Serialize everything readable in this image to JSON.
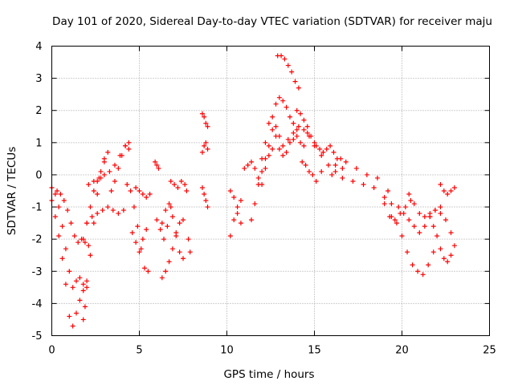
{
  "chart_data": {
    "type": "scatter",
    "title": "Day 101 of 2020, Sidereal Day-to-day VTEC variation (SDTVAR) for receiver maju",
    "xlabel": "GPS time / hours",
    "ylabel": "SDTVAR / TECUs",
    "xlim": [
      0,
      25
    ],
    "ylim": [
      -5,
      4
    ],
    "xticks": [
      0,
      5,
      10,
      15,
      20,
      25
    ],
    "yticks": [
      -5,
      -4,
      -3,
      -2,
      -1,
      0,
      1,
      2,
      3,
      4
    ],
    "grid": true,
    "marker": "plus",
    "series": [
      {
        "name": "SDTVAR",
        "color": "#ff0000",
        "tracks": [
          {
            "x": [
              0.0,
              0.2,
              0.4,
              0.6,
              0.8,
              1.0,
              1.2,
              1.4,
              1.6,
              1.8
            ],
            "y": [
              -0.4,
              -0.6,
              -1.0,
              -1.6,
              -2.3,
              -3.0,
              -3.5,
              -3.3,
              -3.2,
              -3.4
            ]
          },
          {
            "x": [
              0.0,
              0.2,
              0.4,
              0.6,
              0.8,
              1.0,
              1.2,
              1.4,
              1.6,
              1.8,
              2.0
            ],
            "y": [
              -0.8,
              -1.3,
              -1.9,
              -2.6,
              -3.4,
              -4.4,
              -4.7,
              -4.3,
              -3.9,
              -3.6,
              -3.3
            ]
          },
          {
            "x": [
              0.3,
              0.5,
              0.7,
              0.9,
              1.1,
              1.3,
              1.5,
              1.7,
              1.9,
              2.1
            ],
            "y": [
              -0.5,
              -0.6,
              -0.8,
              -1.1,
              -1.5,
              -1.9,
              -2.1,
              -2.0,
              -2.1,
              -2.2
            ]
          },
          {
            "x": [
              1.8,
              1.9,
              2.0,
              2.2,
              2.4,
              2.6,
              2.8,
              3.0,
              3.2
            ],
            "y": [
              -4.5,
              -4.1,
              -3.5,
              -2.5,
              -1.5,
              -0.6,
              -0.1,
              0.4,
              0.7
            ]
          },
          {
            "x": [
              1.8,
              2.0,
              2.2,
              2.4,
              2.6,
              2.8,
              3.0
            ],
            "y": [
              -2.0,
              -1.5,
              -1.0,
              -0.5,
              -0.2,
              0.1,
              0.5
            ]
          },
          {
            "x": [
              2.0,
              2.3,
              2.6,
              2.9,
              3.2,
              3.5,
              3.8,
              4.1
            ],
            "y": [
              -1.5,
              -1.3,
              -1.2,
              -1.1,
              -1.0,
              -1.1,
              -1.2,
              -1.1
            ]
          },
          {
            "x": [
              2.1,
              2.4,
              2.7,
              3.0,
              3.3,
              3.6,
              3.9,
              4.2,
              4.4
            ],
            "y": [
              -0.3,
              -0.2,
              -0.1,
              0.0,
              0.1,
              0.3,
              0.6,
              0.9,
              1.0
            ]
          },
          {
            "x": [
              3.4,
              3.6,
              3.8,
              4.0,
              4.2,
              4.4
            ],
            "y": [
              -0.5,
              -0.2,
              0.2,
              0.6,
              0.9,
              0.8
            ]
          },
          {
            "x": [
              4.3,
              4.5,
              4.7,
              4.9,
              5.1,
              5.3,
              5.5
            ],
            "y": [
              -0.3,
              -0.5,
              -1.0,
              -1.6,
              -2.3,
              -2.9,
              -3.0
            ]
          },
          {
            "x": [
              4.6,
              4.8,
              5.0,
              5.2,
              5.4
            ],
            "y": [
              -1.8,
              -2.1,
              -2.4,
              -2.0,
              -1.7
            ]
          },
          {
            "x": [
              4.8,
              5.0,
              5.2,
              5.4,
              5.6
            ],
            "y": [
              -0.4,
              -0.5,
              -0.6,
              -0.7,
              -0.6
            ]
          },
          {
            "x": [
              5.9,
              6.0,
              6.1
            ],
            "y": [
              0.4,
              0.3,
              0.2
            ]
          },
          {
            "x": [
              6.3,
              6.5,
              6.7,
              6.9,
              7.1,
              7.3,
              7.5
            ],
            "y": [
              -3.2,
              -3.0,
              -2.7,
              -2.3,
              -1.8,
              -1.5,
              -1.4
            ]
          },
          {
            "x": [
              6.3,
              6.5,
              6.7,
              6.9,
              7.1,
              7.3,
              7.5
            ],
            "y": [
              -1.5,
              -1.1,
              -0.9,
              -1.3,
              -1.9,
              -2.4,
              -2.6
            ]
          },
          {
            "x": [
              6.0,
              6.2,
              6.4,
              6.6,
              6.8
            ],
            "y": [
              -1.4,
              -1.7,
              -2.0,
              -1.6,
              -1.0
            ]
          },
          {
            "x": [
              6.8,
              7.0,
              7.2,
              7.4,
              7.6
            ],
            "y": [
              -0.2,
              -0.3,
              -0.4,
              -0.2,
              -0.3
            ]
          },
          {
            "x": [
              7.7,
              7.8,
              7.9
            ],
            "y": [
              -0.5,
              -2.0,
              -2.4
            ]
          },
          {
            "x": [
              8.6,
              8.7,
              8.8,
              8.9
            ],
            "y": [
              1.9,
              1.8,
              1.6,
              1.5
            ]
          },
          {
            "x": [
              8.6,
              8.7,
              8.8,
              8.9
            ],
            "y": [
              0.7,
              0.9,
              1.0,
              0.8
            ]
          },
          {
            "x": [
              8.6,
              8.7,
              8.8,
              8.9
            ],
            "y": [
              -0.4,
              -0.6,
              -0.8,
              -1.0
            ]
          },
          {
            "x": [
              10.2,
              10.4,
              10.6,
              10.8
            ],
            "y": [
              -1.9,
              -1.4,
              -1.0,
              -0.8
            ]
          },
          {
            "x": [
              10.2,
              10.4,
              10.6,
              10.8
            ],
            "y": [
              -0.5,
              -0.7,
              -1.2,
              -1.5
            ]
          },
          {
            "x": [
              11.0,
              11.2
            ],
            "y": [
              0.2,
              0.3
            ]
          },
          {
            "x": [
              11.4,
              11.6,
              11.8,
              12.0,
              12.2,
              12.4,
              12.6
            ],
            "y": [
              -1.4,
              -0.9,
              -0.3,
              0.1,
              0.5,
              0.9,
              1.4
            ]
          },
          {
            "x": [
              11.4,
              11.6,
              11.8,
              12.0,
              12.2,
              12.4,
              12.6
            ],
            "y": [
              0.4,
              0.2,
              -0.1,
              -0.3,
              0.2,
              0.6,
              0.8
            ]
          },
          {
            "x": [
              12.0,
              12.2,
              12.4,
              12.6,
              12.8,
              13.0
            ],
            "y": [
              0.5,
              1.0,
              1.6,
              1.8,
              1.5,
              1.2
            ]
          },
          {
            "x": [
              12.8,
              13.0,
              13.2,
              13.4,
              13.6,
              13.8,
              14.0
            ],
            "y": [
              2.2,
              2.4,
              2.3,
              2.1,
              1.8,
              1.6,
              1.4
            ]
          },
          {
            "x": [
              12.9,
              13.1,
              13.3,
              13.5,
              13.7,
              13.9,
              14.1
            ],
            "y": [
              3.7,
              3.7,
              3.6,
              3.4,
              3.2,
              2.9,
              2.7
            ]
          },
          {
            "x": [
              12.8,
              13.0,
              13.2,
              13.4,
              13.6,
              13.8,
              14.0,
              14.2,
              14.4
            ],
            "y": [
              1.2,
              0.8,
              0.6,
              0.7,
              1.0,
              1.1,
              1.2,
              1.0,
              0.9
            ]
          },
          {
            "x": [
              13.2,
              13.5,
              13.8,
              14.1,
              14.4,
              14.7
            ],
            "y": [
              0.9,
              1.1,
              1.3,
              1.5,
              1.4,
              1.2
            ]
          },
          {
            "x": [
              14.0,
              14.2,
              14.4,
              14.6,
              14.8,
              15.0
            ],
            "y": [
              2.0,
              1.9,
              1.7,
              1.5,
              1.2,
              0.9
            ]
          },
          {
            "x": [
              14.3,
              14.5,
              14.7,
              14.9,
              15.1
            ],
            "y": [
              0.4,
              0.3,
              0.1,
              0.0,
              -0.2
            ]
          },
          {
            "x": [
              14.6,
              15.0,
              15.4,
              15.8,
              16.2,
              16.6
            ],
            "y": [
              1.3,
              1.0,
              0.6,
              0.3,
              0.1,
              0.2
            ]
          },
          {
            "x": [
              15.1,
              15.3,
              15.5,
              15.7,
              15.9,
              16.1,
              16.3,
              16.5
            ],
            "y": [
              0.9,
              0.8,
              0.7,
              0.8,
              0.9,
              0.7,
              0.5,
              0.5
            ]
          },
          {
            "x": [
              15.4,
              16.0,
              16.6,
              17.2,
              17.8,
              18.4,
              19.0,
              19.4
            ],
            "y": [
              0.1,
              0.0,
              -0.1,
              -0.2,
              -0.3,
              -0.4,
              -0.7,
              -0.9
            ]
          },
          {
            "x": [
              16.2,
              16.8,
              17.4,
              18.0,
              18.6,
              19.2
            ],
            "y": [
              0.3,
              0.4,
              0.2,
              0.0,
              -0.1,
              -0.5
            ]
          },
          {
            "x": [
              19.0,
              19.3,
              19.6,
              19.9,
              20.2,
              20.5
            ],
            "y": [
              -0.9,
              -1.3,
              -1.4,
              -1.2,
              -1.0,
              -0.8
            ]
          },
          {
            "x": [
              19.4,
              19.7,
              20.0,
              20.3,
              20.6,
              20.9,
              21.2,
              21.5,
              21.8
            ],
            "y": [
              -1.3,
              -1.5,
              -1.9,
              -2.4,
              -2.8,
              -3.0,
              -3.1,
              -2.8,
              -2.4
            ]
          },
          {
            "x": [
              19.8,
              20.1,
              20.4,
              20.7,
              21.0,
              21.3,
              21.6,
              21.9,
              22.2
            ],
            "y": [
              -1.0,
              -1.2,
              -1.4,
              -1.6,
              -1.8,
              -1.6,
              -1.3,
              -1.1,
              -1.0
            ]
          },
          {
            "x": [
              20.4,
              20.7,
              21.0,
              21.3,
              21.6,
              21.9,
              22.2,
              22.5,
              22.8
            ],
            "y": [
              -0.6,
              -0.9,
              -1.2,
              -1.3,
              -1.2,
              -1.1,
              -1.2,
              -1.4,
              -1.8
            ]
          },
          {
            "x": [
              21.6,
              21.8,
              22.0,
              22.2,
              22.4,
              22.6,
              22.8,
              23.0
            ],
            "y": [
              -1.3,
              -1.6,
              -1.9,
              -2.3,
              -2.6,
              -2.7,
              -2.5,
              -2.2
            ]
          },
          {
            "x": [
              22.2,
              22.4,
              22.6,
              22.8,
              23.0
            ],
            "y": [
              -0.3,
              -0.5,
              -0.6,
              -0.5,
              -0.4
            ]
          }
        ]
      }
    ]
  }
}
